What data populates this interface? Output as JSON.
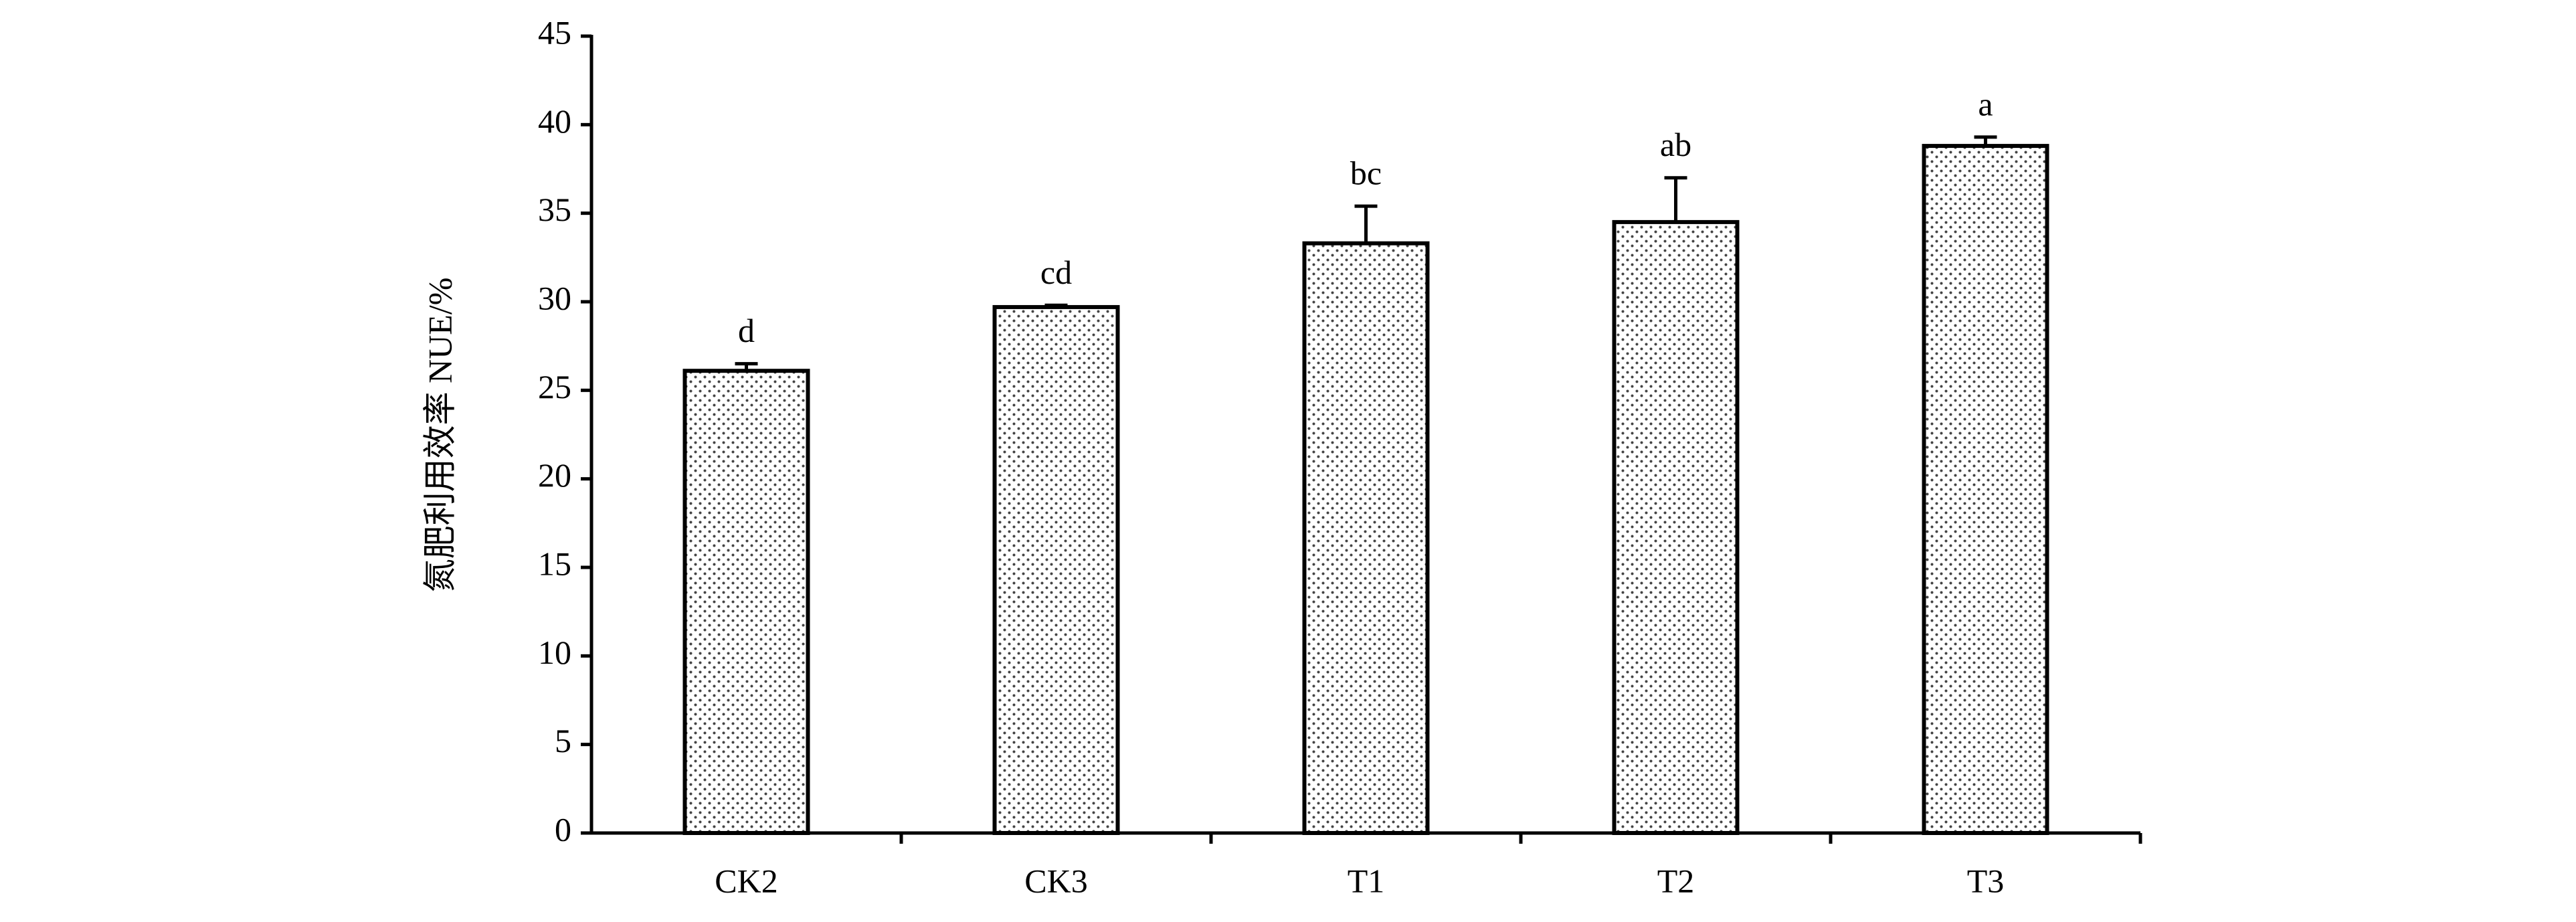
{
  "chart_data": {
    "type": "bar",
    "y_label": "氮肥利用效率 NUE/%",
    "categories": [
      "CK2",
      "CK3",
      "T1",
      "T2",
      "T3"
    ],
    "values": [
      26.1,
      29.7,
      33.3,
      34.5,
      38.8
    ],
    "errors": [
      0.4,
      0.1,
      2.1,
      2.5,
      0.5
    ],
    "labels": [
      "d",
      "cd",
      "bc",
      "ab",
      "a"
    ],
    "color": "#000000",
    "ylim": [
      0,
      45
    ],
    "yticks": [
      0,
      5,
      10,
      15,
      20,
      25,
      30,
      35,
      40,
      45
    ],
    "grid": false
  }
}
